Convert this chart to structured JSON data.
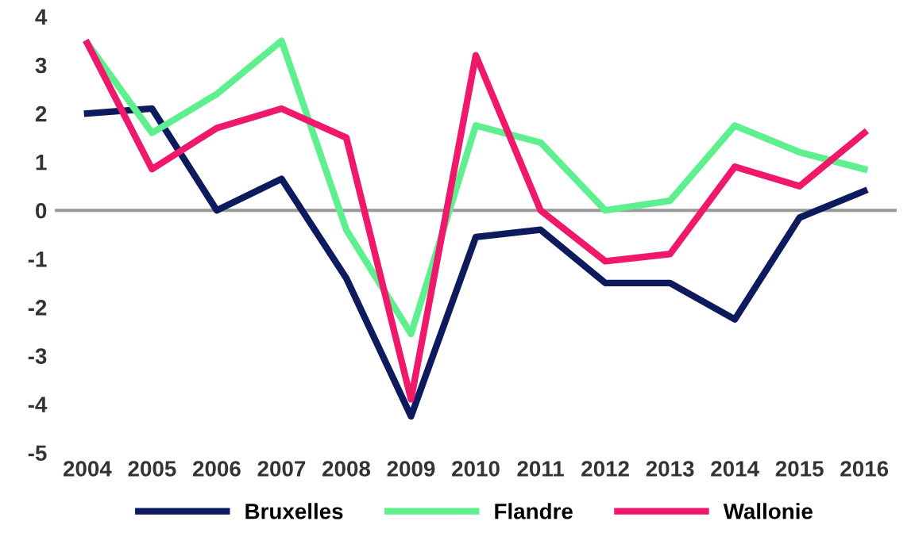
{
  "chart_data": {
    "type": "line",
    "categories": [
      "2004",
      "2005",
      "2006",
      "2007",
      "2008",
      "2009",
      "2010",
      "2011",
      "2012",
      "2013",
      "2014",
      "2015",
      "2016"
    ],
    "series": [
      {
        "name": "Bruxelles",
        "color": "#0d1b5e",
        "values": [
          2.0,
          2.1,
          0.0,
          0.65,
          -1.4,
          -4.25,
          -0.55,
          -0.4,
          -1.5,
          -1.5,
          -2.25,
          -0.15,
          0.4
        ]
      },
      {
        "name": "Flandre",
        "color": "#5ef08f",
        "values": [
          3.45,
          1.6,
          2.4,
          3.5,
          -0.4,
          -2.55,
          1.75,
          1.4,
          0.0,
          0.2,
          1.75,
          1.2,
          0.85
        ]
      },
      {
        "name": "Wallonie",
        "color": "#f0186a",
        "values": [
          3.45,
          0.85,
          1.7,
          2.1,
          1.5,
          -3.9,
          3.2,
          0.0,
          -1.05,
          -0.9,
          0.9,
          0.5,
          1.6
        ]
      }
    ],
    "ylim": [
      -5,
      4
    ],
    "yticks": [
      -5,
      -4,
      -3,
      -2,
      -1,
      0,
      1,
      2,
      3,
      4
    ],
    "ref_lines": [
      {
        "axis": "y",
        "value": 0,
        "color": "#999999"
      }
    ],
    "legend": "bottom",
    "marker": "none",
    "line_style": "solid"
  }
}
